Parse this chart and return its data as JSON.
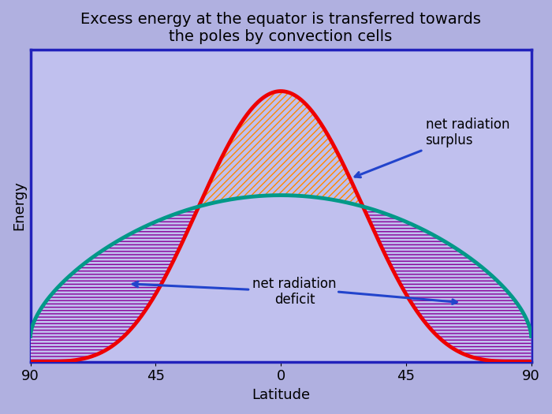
{
  "title": "Excess energy at the equator is transferred towards\nthe poles by convection cells",
  "xlabel": "Latitude",
  "ylabel": "Energy",
  "xticks": [
    -90,
    -45,
    0,
    45,
    90
  ],
  "xticklabels": [
    "90",
    "45",
    "0",
    "45",
    "90"
  ],
  "background_color": "#b0b0e0",
  "plot_bg_color": "#c0c0ee",
  "box_color": "#2222bb",
  "title_fontsize": 14,
  "label_fontsize": 13,
  "tick_fontsize": 13,
  "absorbed_color": "#ee0000",
  "emitted_color": "#009988",
  "surplus_hatch_color": "#ff8800",
  "deficit_hatch_color": "#880099",
  "annotation_color": "#2244cc",
  "arrow_color": "#2244cc",
  "annotation_fontsize": 12
}
